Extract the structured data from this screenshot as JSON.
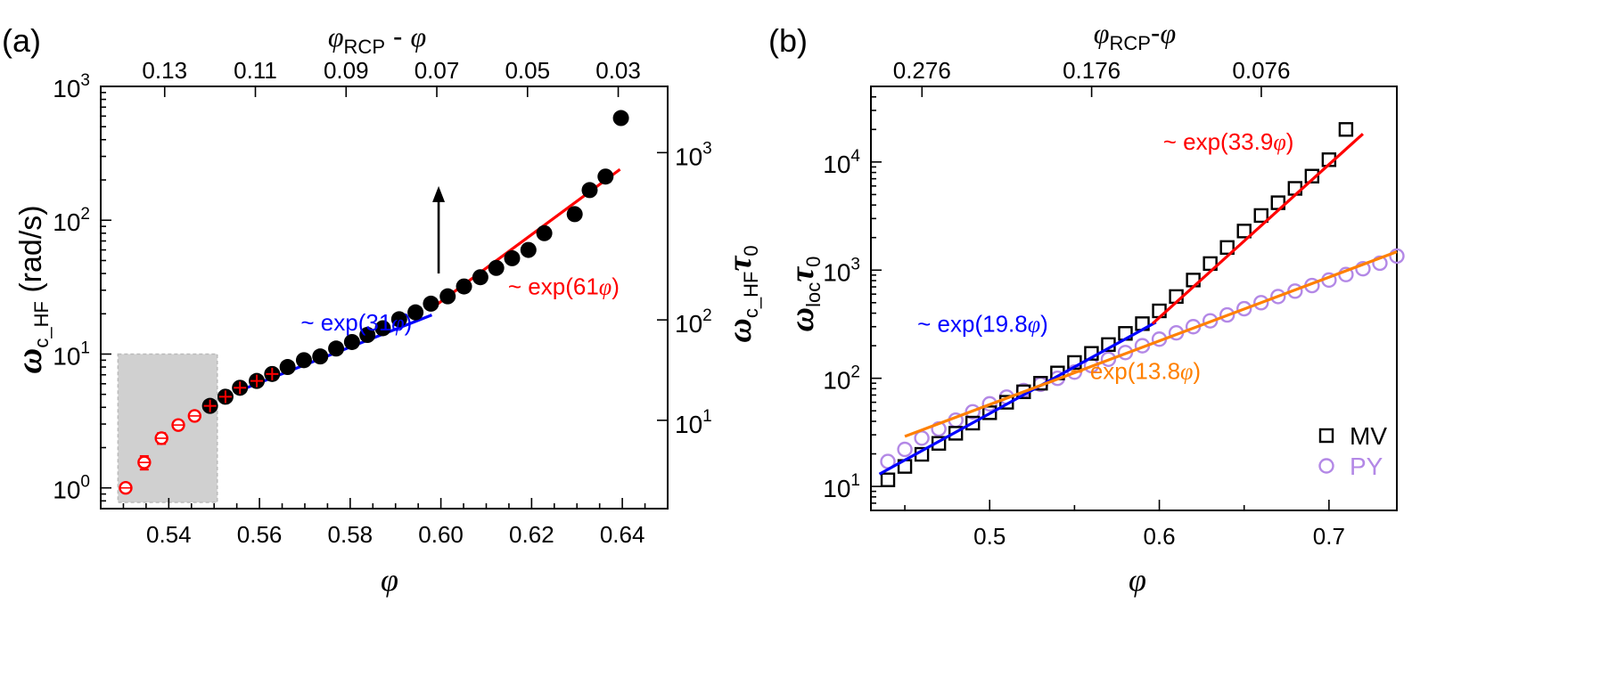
{
  "figure": {
    "panel_labels": [
      "(a)",
      "(b)"
    ]
  },
  "chart_data": [
    {
      "type": "scatter",
      "panel": "(a)",
      "xscale": "linear",
      "yscale": "log",
      "xlim": [
        0.525,
        0.65
      ],
      "ylim": [
        0.7,
        1000
      ],
      "xticks": [
        "0.54",
        "0.56",
        "0.58",
        "0.60",
        "0.62",
        "0.64"
      ],
      "yticks": [
        {
          "base": "10",
          "exp": "0"
        },
        {
          "base": "10",
          "exp": "1"
        },
        {
          "base": "10",
          "exp": "2"
        },
        {
          "base": "10",
          "exp": "3"
        }
      ],
      "xlabel": {
        "sym": "φ"
      },
      "ylabel": {
        "sym": "ω",
        "sub": "c_HF",
        "rest": " (rad/s)"
      },
      "top_axis": {
        "label": {
          "sym1": "φ",
          "sub": "RCP",
          "mid": " - ",
          "sym2": "φ"
        },
        "ticks": [
          {
            "label": "0.13",
            "x": 0.5391
          },
          {
            "label": "0.11",
            "x": 0.5591
          },
          {
            "label": "0.09",
            "x": 0.5791
          },
          {
            "label": "0.07",
            "x": 0.5991
          },
          {
            "label": "0.05",
            "x": 0.6191
          },
          {
            "label": "0.03",
            "x": 0.6391
          }
        ]
      },
      "right_axis": {
        "label": {
          "sym": "ω",
          "sub": "c_HF",
          "sym2": "τ",
          "sub2": "0"
        },
        "ticks": [
          {
            "base": "10",
            "exp": "1",
            "y": 3.2
          },
          {
            "base": "10",
            "exp": "2",
            "y": 18
          },
          {
            "base": "10",
            "exp": "3",
            "y": 320
          }
        ]
      },
      "series": [
        {
          "marker": "open-circle",
          "color": "#ff0000",
          "x": [
            0.5305,
            0.5346,
            0.5384,
            0.5421,
            0.5457
          ],
          "y": [
            1.0,
            1.55,
            2.35,
            2.95,
            3.45
          ],
          "err": [
            0.05,
            0.18,
            0.22,
            0.2,
            0.2
          ]
        },
        {
          "marker": "filled-circle",
          "color": "#000000",
          "x": [
            0.5491,
            0.5525,
            0.5557,
            0.5594,
            0.5628,
            0.5662,
            0.5698,
            0.5734,
            0.5769,
            0.5804,
            0.5838,
            0.5872,
            0.5908,
            0.5944,
            0.5978,
            0.6015,
            0.6051,
            0.6087,
            0.6122,
            0.6157,
            0.6193,
            0.6228,
            0.6295,
            0.6328,
            0.6363,
            0.6397
          ],
          "y": [
            4.1,
            4.8,
            5.6,
            6.3,
            7.1,
            8.0,
            9.0,
            9.6,
            11.0,
            12.3,
            13.9,
            15.6,
            18.2,
            20.5,
            23.8,
            27.0,
            32.0,
            37.5,
            44.0,
            52.0,
            60.0,
            80.0,
            111.0,
            168.0,
            212.0,
            580.0
          ],
          "cross": [
            1,
            1,
            1,
            1,
            1,
            0,
            0,
            0,
            0,
            0,
            0,
            0,
            0,
            0,
            0,
            0,
            0,
            0,
            0,
            0,
            0,
            0,
            0,
            0,
            0,
            0
          ]
        }
      ],
      "fits": [
        {
          "label_pre": "~ exp(31",
          "label_sym": "φ",
          "label_post": ")",
          "color": "#0000ff",
          "x": [
            0.556,
            0.598
          ],
          "y": [
            5.4,
            19.6
          ],
          "label_at": [
            0.5691,
            15.0
          ]
        },
        {
          "label_pre": "~ exp(61",
          "label_sym": "φ",
          "label_post": ")",
          "color": "#ff0000",
          "x": [
            0.598,
            0.6395
          ],
          "y": [
            22.0,
            240.0
          ],
          "label_at": [
            0.6148,
            28.0
          ]
        }
      ],
      "annotations": [
        {
          "kind": "arrow",
          "x": 0.5995,
          "y_from": 40.0,
          "y_to": 180.0
        },
        {
          "kind": "shaded-box",
          "color": "#d0d0d0",
          "x": [
            0.5288,
            0.5507
          ],
          "y": [
            0.78,
            10.0
          ]
        }
      ]
    },
    {
      "type": "scatter",
      "panel": "(b)",
      "xscale": "linear",
      "yscale": "log",
      "xlim": [
        0.43,
        0.74
      ],
      "ylim": [
        6,
        50000
      ],
      "xticks": [
        "0.5",
        "0.6",
        "0.7"
      ],
      "yticks": [
        {
          "base": "10",
          "exp": "1"
        },
        {
          "base": "10",
          "exp": "2"
        },
        {
          "base": "10",
          "exp": "3"
        },
        {
          "base": "10",
          "exp": "4"
        }
      ],
      "xlabel": {
        "sym": "φ"
      },
      "ylabel": {
        "sym1": "ω",
        "sub": "loc",
        "sym2": "τ",
        "sub2": "0"
      },
      "top_axis": {
        "label": {
          "sym1": "φ",
          "sub": "RCP",
          "mid": "-",
          "sym2": "φ"
        },
        "ticks": [
          {
            "label": "0.276",
            "x": 0.4601
          },
          {
            "label": "0.176",
            "x": 0.5601
          },
          {
            "label": "0.076",
            "x": 0.6601
          }
        ]
      },
      "series": [
        {
          "name": "MV",
          "marker": "open-square",
          "color": "#000000",
          "x": [
            0.44,
            0.45,
            0.46,
            0.47,
            0.48,
            0.49,
            0.5,
            0.51,
            0.52,
            0.53,
            0.54,
            0.55,
            0.56,
            0.57,
            0.58,
            0.59,
            0.6,
            0.61,
            0.62,
            0.63,
            0.64,
            0.65,
            0.66,
            0.67,
            0.68,
            0.69,
            0.7,
            0.71
          ],
          "y": [
            11.5,
            15.3,
            19.8,
            25.0,
            31.0,
            38.5,
            48.0,
            60.0,
            75.0,
            90.0,
            112.0,
            140.0,
            170.0,
            205.0,
            260.0,
            320.0,
            420.0,
            570.0,
            810.0,
            1150.0,
            1620.0,
            2300.0,
            3200.0,
            4200.0,
            5700.0,
            7400.0,
            10500.0,
            20000.0
          ]
        },
        {
          "name": "PY",
          "marker": "open-circle",
          "color": "#b388e6",
          "x": [
            0.44,
            0.45,
            0.46,
            0.47,
            0.48,
            0.49,
            0.5,
            0.51,
            0.52,
            0.53,
            0.54,
            0.55,
            0.56,
            0.57,
            0.58,
            0.59,
            0.6,
            0.61,
            0.62,
            0.63,
            0.64,
            0.65,
            0.66,
            0.67,
            0.68,
            0.69,
            0.7,
            0.71,
            0.72,
            0.73,
            0.74
          ],
          "y": [
            17.0,
            22.0,
            28.0,
            34.0,
            41.0,
            49.0,
            58.0,
            67.0,
            77.0,
            88.0,
            100.0,
            114.0,
            131.0,
            150.0,
            173.0,
            200.0,
            230.0,
            263.0,
            300.0,
            340.0,
            385.0,
            440.0,
            500.0,
            570.0,
            640.0,
            720.0,
            810.0,
            910.0,
            1030.0,
            1160.0,
            1350.0
          ]
        }
      ],
      "fits": [
        {
          "label_pre": "~ exp(19.8",
          "label_sym": "φ",
          "label_post": ")",
          "color": "#0000ff",
          "x": [
            0.435,
            0.598
          ],
          "y": [
            13.0,
            330.0
          ],
          "label_at": [
            0.4574,
            270.0
          ]
        },
        {
          "label_pre": "~ exp(33.9",
          "label_sym": "φ",
          "label_post": ")",
          "color": "#ff0000",
          "x": [
            0.596,
            0.72
          ],
          "y": [
            320.0,
            18200.0
          ],
          "label_at": [
            0.6022,
            13000.0
          ]
        },
        {
          "label_pre": "~ exp(13.8",
          "label_sym": "φ",
          "label_post": ")",
          "color": "#ff8000",
          "x": [
            0.45,
            0.74
          ],
          "y": [
            29.0,
            1480.0
          ],
          "label_at": [
            0.5474,
            98.0
          ]
        }
      ],
      "legend": {
        "placement": "bottom-right"
      }
    }
  ]
}
